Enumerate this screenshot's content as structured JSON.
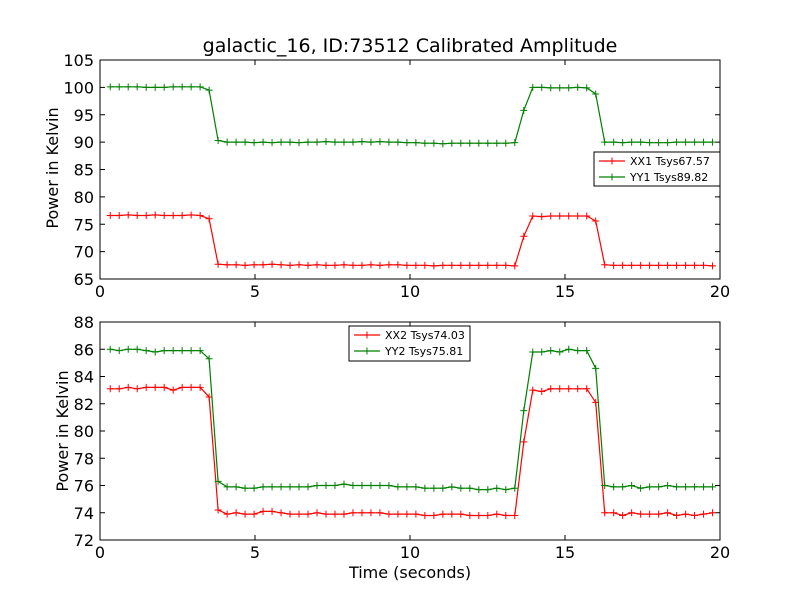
{
  "title": "galactic_16, ID:73512 Calibrated Amplitude",
  "chart_data": [
    {
      "type": "line",
      "ylabel": "Power in Kelvin",
      "xlabel": "",
      "xlim": [
        0,
        20
      ],
      "ylim": [
        65,
        105
      ],
      "xticks": [
        "0",
        "5",
        "10",
        "15",
        "20"
      ],
      "yticks": [
        "65",
        "70",
        "75",
        "80",
        "85",
        "90",
        "95",
        "100",
        "105"
      ],
      "legend_position": "right",
      "x": [
        0.33,
        0.62,
        0.91,
        1.2,
        1.49,
        1.78,
        2.07,
        2.36,
        2.65,
        2.94,
        3.23,
        3.52,
        3.81,
        4.1,
        4.39,
        4.68,
        4.97,
        5.26,
        5.55,
        5.84,
        6.13,
        6.42,
        6.71,
        7.0,
        7.29,
        7.58,
        7.87,
        8.16,
        8.45,
        8.74,
        9.03,
        9.32,
        9.61,
        9.9,
        10.19,
        10.48,
        10.77,
        11.06,
        11.35,
        11.64,
        11.93,
        12.22,
        12.51,
        12.8,
        13.09,
        13.38,
        13.67,
        13.96,
        14.25,
        14.54,
        14.83,
        15.12,
        15.41,
        15.7,
        15.99,
        16.28,
        16.57,
        16.86,
        17.15,
        17.44,
        17.73,
        18.02,
        18.31,
        18.6,
        18.89,
        19.18,
        19.47,
        19.76
      ],
      "series": [
        {
          "name": "XX1 Tsys67.57",
          "color": "#ff0000",
          "values": [
            76.6,
            76.6,
            76.7,
            76.6,
            76.6,
            76.7,
            76.6,
            76.6,
            76.6,
            76.7,
            76.6,
            76.0,
            67.7,
            67.6,
            67.6,
            67.5,
            67.6,
            67.6,
            67.7,
            67.6,
            67.5,
            67.6,
            67.5,
            67.6,
            67.5,
            67.5,
            67.6,
            67.5,
            67.5,
            67.6,
            67.5,
            67.6,
            67.6,
            67.5,
            67.5,
            67.5,
            67.4,
            67.5,
            67.5,
            67.5,
            67.5,
            67.5,
            67.5,
            67.5,
            67.5,
            67.4,
            72.8,
            76.5,
            76.4,
            76.5,
            76.5,
            76.5,
            76.5,
            76.5,
            75.6,
            67.6,
            67.5,
            67.5,
            67.5,
            67.5,
            67.5,
            67.5,
            67.5,
            67.5,
            67.5,
            67.5,
            67.5,
            67.4
          ]
        },
        {
          "name": "YY1 Tsys89.82",
          "color": "#008000",
          "values": [
            100.1,
            100.1,
            100.1,
            100.1,
            100.0,
            100.0,
            100.0,
            100.1,
            100.1,
            100.1,
            100.1,
            99.5,
            90.3,
            90.0,
            90.0,
            90.0,
            89.9,
            90.0,
            89.9,
            90.0,
            90.0,
            89.9,
            90.0,
            90.0,
            90.1,
            90.0,
            90.0,
            90.0,
            90.1,
            90.0,
            90.1,
            90.0,
            90.0,
            89.9,
            89.9,
            89.8,
            89.8,
            89.7,
            89.8,
            89.8,
            89.8,
            89.8,
            89.8,
            89.8,
            89.8,
            89.9,
            95.8,
            100.0,
            100.0,
            99.9,
            99.9,
            99.9,
            100.0,
            99.9,
            98.8,
            90.0,
            90.0,
            89.9,
            90.0,
            90.0,
            89.9,
            89.9,
            89.9,
            90.0,
            90.0,
            90.0,
            90.0,
            90.0
          ]
        }
      ]
    },
    {
      "type": "line",
      "ylabel": "Power in Kelvin",
      "xlabel": "Time (seconds)",
      "xlim": [
        0,
        20
      ],
      "ylim": [
        72,
        88
      ],
      "xticks": [
        "0",
        "5",
        "10",
        "15",
        "20"
      ],
      "yticks": [
        "72",
        "74",
        "76",
        "78",
        "80",
        "82",
        "84",
        "86",
        "88"
      ],
      "legend_position": "top-center",
      "x": [
        0.33,
        0.62,
        0.91,
        1.2,
        1.49,
        1.78,
        2.07,
        2.36,
        2.65,
        2.94,
        3.23,
        3.52,
        3.81,
        4.1,
        4.39,
        4.68,
        4.97,
        5.26,
        5.55,
        5.84,
        6.13,
        6.42,
        6.71,
        7.0,
        7.29,
        7.58,
        7.87,
        8.16,
        8.45,
        8.74,
        9.03,
        9.32,
        9.61,
        9.9,
        10.19,
        10.48,
        10.77,
        11.06,
        11.35,
        11.64,
        11.93,
        12.22,
        12.51,
        12.8,
        13.09,
        13.38,
        13.67,
        13.96,
        14.25,
        14.54,
        14.83,
        15.12,
        15.41,
        15.7,
        15.99,
        16.28,
        16.57,
        16.86,
        17.15,
        17.44,
        17.73,
        18.02,
        18.31,
        18.6,
        18.89,
        19.18,
        19.47,
        19.76
      ],
      "series": [
        {
          "name": "XX2 Tsys74.03",
          "color": "#ff0000",
          "values": [
            83.1,
            83.1,
            83.2,
            83.1,
            83.2,
            83.2,
            83.2,
            83.0,
            83.2,
            83.2,
            83.2,
            82.5,
            74.2,
            73.9,
            74.0,
            73.9,
            73.9,
            74.1,
            74.1,
            74.0,
            73.9,
            73.9,
            73.9,
            74.0,
            73.9,
            73.9,
            73.9,
            74.0,
            74.0,
            74.0,
            74.0,
            73.9,
            73.9,
            73.9,
            73.9,
            73.8,
            73.8,
            73.9,
            73.9,
            73.9,
            73.8,
            73.8,
            73.8,
            73.9,
            73.8,
            73.8,
            79.2,
            83.0,
            82.9,
            83.1,
            83.1,
            83.1,
            83.1,
            83.1,
            82.1,
            74.0,
            74.0,
            73.8,
            74.0,
            73.9,
            73.9,
            73.9,
            74.0,
            73.8,
            73.9,
            73.8,
            73.9,
            74.0
          ]
        },
        {
          "name": "YY2 Tsys75.81",
          "color": "#008000",
          "values": [
            86.0,
            85.9,
            86.0,
            86.0,
            85.9,
            85.8,
            85.9,
            85.9,
            85.9,
            85.9,
            85.9,
            85.3,
            76.3,
            75.9,
            75.9,
            75.8,
            75.8,
            75.9,
            75.9,
            75.9,
            75.9,
            75.9,
            75.9,
            76.0,
            76.0,
            76.0,
            76.1,
            76.0,
            76.0,
            76.0,
            76.0,
            76.0,
            75.9,
            75.9,
            75.9,
            75.8,
            75.8,
            75.8,
            75.9,
            75.8,
            75.8,
            75.7,
            75.7,
            75.8,
            75.7,
            75.8,
            81.5,
            85.8,
            85.8,
            85.9,
            85.8,
            86.0,
            85.9,
            85.9,
            84.6,
            76.0,
            75.9,
            75.9,
            76.0,
            75.8,
            75.9,
            75.9,
            76.0,
            75.9,
            75.9,
            75.9,
            75.9,
            75.9
          ]
        }
      ]
    }
  ]
}
